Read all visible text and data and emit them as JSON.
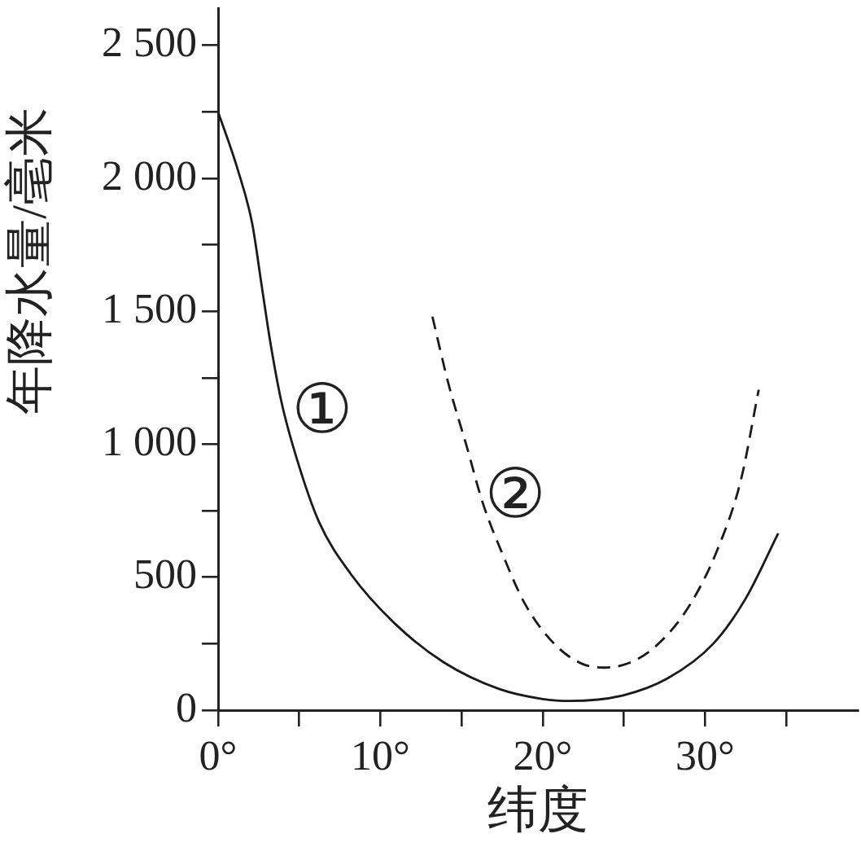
{
  "chart_data": {
    "type": "line",
    "xlabel": "纬度",
    "ylabel": "年降水量/毫米",
    "xlim": [
      0,
      39.4
    ],
    "xticks": [
      {
        "value": 0,
        "label": "0°"
      },
      {
        "value": 5,
        "label": null
      },
      {
        "value": 10,
        "label": "10°"
      },
      {
        "value": 15,
        "label": null
      },
      {
        "value": 20,
        "label": "20°"
      },
      {
        "value": 25,
        "label": null
      },
      {
        "value": 30,
        "label": "30°"
      },
      {
        "value": 35,
        "label": null
      }
    ],
    "ylim": [
      0,
      2640
    ],
    "yticks": [
      0,
      {
        "value": 250,
        "label": null
      },
      500,
      {
        "value": 750,
        "label": null
      },
      {
        "value": 1000,
        "label": "1 000"
      },
      {
        "value": 1250,
        "label": null
      },
      {
        "value": 1500,
        "label": "1 500"
      },
      {
        "value": 1750,
        "label": null
      },
      {
        "value": 2000,
        "label": "2 000"
      },
      {
        "value": 2250,
        "label": null
      },
      {
        "value": 2500,
        "label": "2 500"
      }
    ],
    "series": [
      {
        "name": "①",
        "color": "#1a1a1a",
        "line_style": "solid",
        "x": [
          0,
          1.2,
          2.1,
          2.7,
          3.2,
          3.9,
          4.8,
          6.2,
          8.2,
          10.9,
          13.9,
          17.3,
          20,
          21.7,
          24.9,
          27.7,
          30.5,
          32.5,
          34.5
        ],
        "values": [
          2250,
          2035,
          1830,
          1590,
          1390,
          1160,
          955,
          710,
          510,
          325,
          180,
          80,
          42,
          35,
          55,
          120,
          250,
          420,
          665
        ]
      },
      {
        "name": "②",
        "color": "#1a1a1a",
        "line_style": "dashed",
        "x": [
          13.2,
          14.2,
          15.3,
          16.3,
          17.5,
          18.9,
          20.7,
          22.4,
          23.8,
          25.6,
          27.3,
          29.1,
          30.8,
          32.2,
          33.3
        ],
        "values": [
          1480,
          1225,
          995,
          780,
          590,
          400,
          250,
          175,
          160,
          185,
          260,
          400,
          610,
          865,
          1205
        ]
      }
    ]
  }
}
